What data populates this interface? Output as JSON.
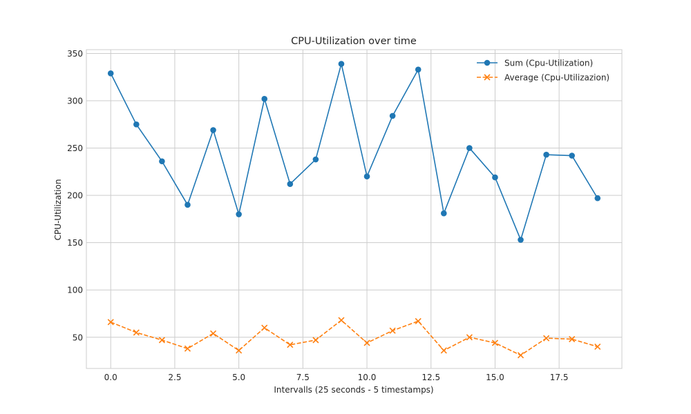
{
  "chart_data": {
    "type": "line",
    "title": "CPU-Utilization over time",
    "xlabel": "Intervalls (25 seconds - 5 timestamps)",
    "ylabel": "CPU-Utilization",
    "xlim": [
      -0.95,
      19.95
    ],
    "ylim": [
      17,
      354
    ],
    "xticks": [
      0.0,
      2.5,
      5.0,
      7.5,
      10.0,
      12.5,
      15.0,
      17.5
    ],
    "xtick_labels": [
      "0.0",
      "2.5",
      "5.0",
      "7.5",
      "10.0",
      "12.5",
      "15.0",
      "17.5"
    ],
    "yticks": [
      50,
      100,
      150,
      200,
      250,
      300,
      350
    ],
    "ytick_labels": [
      "50",
      "100",
      "150",
      "200",
      "250",
      "300",
      "350"
    ],
    "grid": true,
    "legend_position": "top-right",
    "x": [
      0,
      1,
      2,
      3,
      4,
      5,
      6,
      7,
      8,
      9,
      10,
      11,
      12,
      13,
      14,
      15,
      16,
      17,
      18,
      19
    ],
    "series": [
      {
        "name": "Sum (Cpu-Utilization)",
        "color": "#1f77b4",
        "linestyle": "solid",
        "marker": "circle",
        "values": [
          329,
          275,
          236,
          190,
          269,
          180,
          302,
          212,
          238,
          339,
          220,
          284,
          333,
          181,
          250,
          219,
          153,
          243,
          242,
          197
        ]
      },
      {
        "name": "Average (Cpu-Utilizazion)",
        "color": "#ff7f0e",
        "linestyle": "dashed",
        "marker": "x",
        "values": [
          66,
          55,
          47,
          38,
          54,
          36,
          60,
          42,
          47,
          68,
          44,
          57,
          67,
          36,
          50,
          44,
          31,
          49,
          48,
          40
        ]
      }
    ]
  }
}
